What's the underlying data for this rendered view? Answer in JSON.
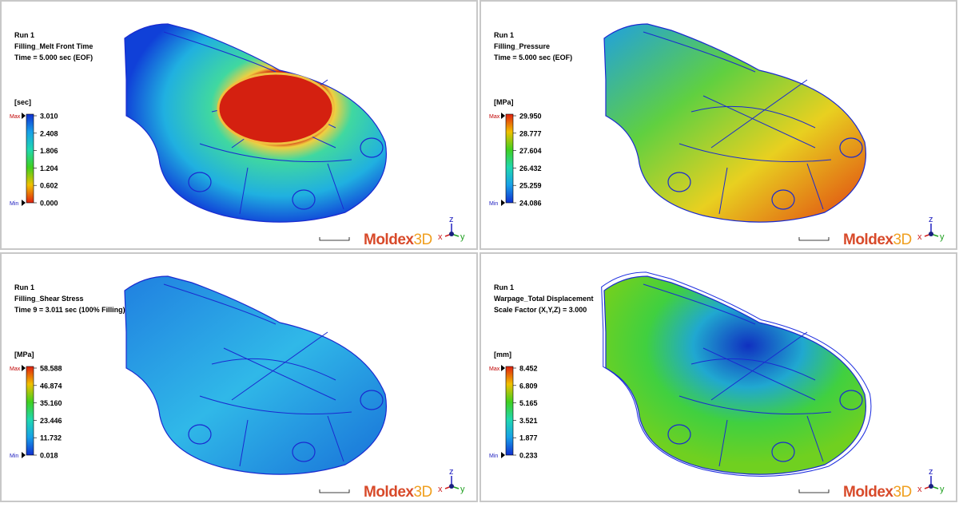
{
  "panels": [
    {
      "run": "Run 1",
      "result": "Filling_Melt Front Time",
      "time": "Time = 5.000 sec (EOF)",
      "unit": "[sec]",
      "legend": [
        "3.010",
        "2.408",
        "1.806",
        "1.204",
        "0.602",
        "0.000"
      ]
    },
    {
      "run": "Run 1",
      "result": "Filling_Pressure",
      "time": "Time = 5.000 sec (EOF)",
      "unit": "[MPa]",
      "legend": [
        "29.950",
        "28.777",
        "27.604",
        "26.432",
        "25.259",
        "24.086"
      ]
    },
    {
      "run": "Run 1",
      "result": "Filling_Shear Stress",
      "time": "Time 9 = 3.011 sec (100% Filling)",
      "unit": "[MPa]",
      "legend": [
        "58.588",
        "46.874",
        "35.160",
        "23.446",
        "11.732",
        "0.018"
      ]
    },
    {
      "run": "Run 1",
      "result": "Warpage_Total Displacement",
      "time": "Scale Factor (X,Y,Z) = 3.000",
      "unit": "[mm]",
      "legend": [
        "8.452",
        "6.809",
        "5.165",
        "3.521",
        "1.877",
        "0.233"
      ]
    }
  ],
  "max_label": "Max",
  "min_label": "Min",
  "logo": [
    "Moldex",
    "3D"
  ],
  "axes": [
    "z",
    "x",
    "y"
  ]
}
